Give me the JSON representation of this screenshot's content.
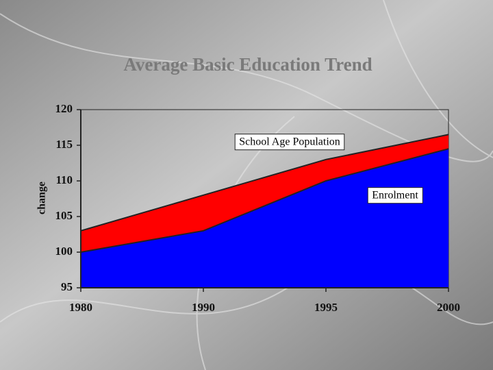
{
  "chart_data": {
    "type": "area",
    "title": "Average Basic Education Trend",
    "y_label": "change",
    "categories": [
      "1980",
      "1990",
      "1995",
      "2000"
    ],
    "series": [
      {
        "name": "School Age Population",
        "color": "#ff0000",
        "values": [
          103,
          108,
          113,
          116.5
        ]
      },
      {
        "name": "Enrolment",
        "color": "#0000ff",
        "values": [
          100,
          103,
          110,
          114.5
        ]
      }
    ],
    "ylim": [
      95,
      120
    ],
    "yticks": [
      95,
      100,
      105,
      110,
      115,
      120
    ]
  }
}
